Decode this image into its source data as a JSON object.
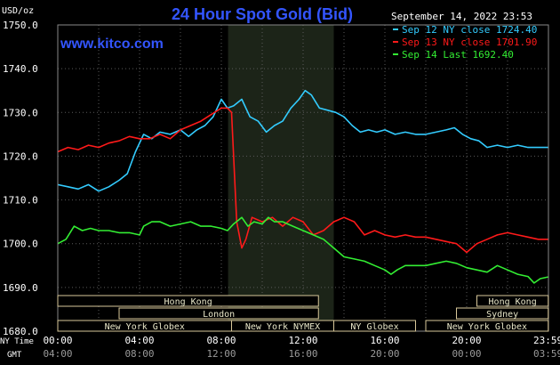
{
  "chart_data": {
    "type": "line",
    "title": "24 Hour Spot Gold (Bid)",
    "source": "www.kitco.com",
    "timestamp": "September 14, 2022 23:53",
    "y_unit": "USD/oz",
    "ylim": [
      1680,
      1750
    ],
    "y_ticks": [
      "1750.0",
      "1740.0",
      "1730.0",
      "1720.0",
      "1710.0",
      "1700.0",
      "1690.0",
      "1680.0"
    ],
    "x_ticks_ny": [
      "00:00",
      "04:00",
      "08:00",
      "12:00",
      "16:00",
      "20:00",
      "23:59"
    ],
    "x_ticks_gmt": [
      "04:00",
      "08:00",
      "12:00",
      "16:00",
      "20:00",
      "00:00",
      "03:59"
    ],
    "x_label_ny": "NY Time",
    "x_label_gmt": "GMT",
    "grid": true,
    "legend_position": "top-right",
    "series": [
      {
        "name": "Sep 12 NY close 1724.40",
        "color": "#33ccff",
        "points": [
          [
            0,
            1713.5
          ],
          [
            0.5,
            1713
          ],
          [
            1,
            1712.5
          ],
          [
            1.5,
            1713.5
          ],
          [
            2,
            1712
          ],
          [
            2.5,
            1713
          ],
          [
            3,
            1714.5
          ],
          [
            3.4,
            1716
          ],
          [
            3.8,
            1721
          ],
          [
            4.2,
            1725
          ],
          [
            4.6,
            1724
          ],
          [
            5,
            1725.5
          ],
          [
            5.5,
            1725
          ],
          [
            6,
            1726
          ],
          [
            6.4,
            1724.5
          ],
          [
            6.8,
            1726
          ],
          [
            7.2,
            1727
          ],
          [
            7.6,
            1729
          ],
          [
            8,
            1733
          ],
          [
            8.3,
            1731
          ],
          [
            8.6,
            1731.5
          ],
          [
            9,
            1733
          ],
          [
            9.4,
            1729
          ],
          [
            9.8,
            1728
          ],
          [
            10.2,
            1725.5
          ],
          [
            10.6,
            1727
          ],
          [
            11,
            1728
          ],
          [
            11.4,
            1731
          ],
          [
            11.8,
            1733
          ],
          [
            12.1,
            1735
          ],
          [
            12.4,
            1734
          ],
          [
            12.8,
            1731
          ],
          [
            13.2,
            1730.5
          ],
          [
            13.6,
            1730
          ],
          [
            14,
            1729
          ],
          [
            14.4,
            1727
          ],
          [
            14.8,
            1725.5
          ],
          [
            15.2,
            1726
          ],
          [
            15.6,
            1725.5
          ],
          [
            16,
            1726
          ],
          [
            16.5,
            1725
          ],
          [
            17,
            1725.5
          ],
          [
            17.5,
            1725
          ],
          [
            18,
            1725
          ],
          [
            18.5,
            1725.5
          ],
          [
            19,
            1726
          ],
          [
            19.4,
            1726.5
          ],
          [
            19.8,
            1725
          ],
          [
            20.2,
            1724
          ],
          [
            20.6,
            1723.5
          ],
          [
            21,
            1722
          ],
          [
            21.5,
            1722.5
          ],
          [
            22,
            1722
          ],
          [
            22.5,
            1722.5
          ],
          [
            23,
            1722
          ],
          [
            23.5,
            1722
          ],
          [
            23.98,
            1722
          ]
        ]
      },
      {
        "name": "Sep 13 NY close 1701.90",
        "color": "#ff1a1a",
        "points": [
          [
            0,
            1721
          ],
          [
            0.5,
            1722
          ],
          [
            1,
            1721.5
          ],
          [
            1.5,
            1722.5
          ],
          [
            2,
            1722
          ],
          [
            2.5,
            1723
          ],
          [
            3,
            1723.5
          ],
          [
            3.5,
            1724.5
          ],
          [
            4,
            1724
          ],
          [
            4.5,
            1724
          ],
          [
            5,
            1725
          ],
          [
            5.5,
            1724
          ],
          [
            6,
            1726
          ],
          [
            6.5,
            1727
          ],
          [
            7,
            1728
          ],
          [
            7.5,
            1729.5
          ],
          [
            8,
            1731
          ],
          [
            8.3,
            1731
          ],
          [
            8.5,
            1730
          ],
          [
            8.6,
            1720
          ],
          [
            8.75,
            1705
          ],
          [
            9,
            1699
          ],
          [
            9.2,
            1701
          ],
          [
            9.5,
            1706
          ],
          [
            10,
            1705
          ],
          [
            10.5,
            1706
          ],
          [
            11,
            1704
          ],
          [
            11.5,
            1706
          ],
          [
            12,
            1705
          ],
          [
            12.5,
            1702
          ],
          [
            13,
            1703
          ],
          [
            13.5,
            1705
          ],
          [
            14,
            1706
          ],
          [
            14.5,
            1705
          ],
          [
            15,
            1702
          ],
          [
            15.5,
            1703
          ],
          [
            16,
            1702
          ],
          [
            16.5,
            1701.5
          ],
          [
            17,
            1702
          ],
          [
            17.5,
            1701.5
          ],
          [
            18,
            1701.5
          ],
          [
            18.5,
            1701
          ],
          [
            19,
            1700.5
          ],
          [
            19.5,
            1700
          ],
          [
            20,
            1698
          ],
          [
            20.5,
            1700
          ],
          [
            21,
            1701
          ],
          [
            21.5,
            1702
          ],
          [
            22,
            1702.5
          ],
          [
            22.5,
            1702
          ],
          [
            23,
            1701.5
          ],
          [
            23.5,
            1701
          ],
          [
            23.98,
            1701
          ]
        ]
      },
      {
        "name": "Sep 14 Last 1692.40",
        "color": "#33ee33",
        "points": [
          [
            0,
            1700
          ],
          [
            0.4,
            1701
          ],
          [
            0.8,
            1704
          ],
          [
            1.2,
            1703
          ],
          [
            1.6,
            1703.5
          ],
          [
            2,
            1703
          ],
          [
            2.5,
            1703
          ],
          [
            3,
            1702.5
          ],
          [
            3.5,
            1702.5
          ],
          [
            4,
            1702
          ],
          [
            4.2,
            1704
          ],
          [
            4.6,
            1705
          ],
          [
            5,
            1705
          ],
          [
            5.5,
            1704
          ],
          [
            6,
            1704.5
          ],
          [
            6.5,
            1705
          ],
          [
            7,
            1704
          ],
          [
            7.5,
            1704
          ],
          [
            8,
            1703.5
          ],
          [
            8.3,
            1703
          ],
          [
            8.6,
            1704.5
          ],
          [
            9,
            1706
          ],
          [
            9.3,
            1704
          ],
          [
            9.6,
            1705
          ],
          [
            10,
            1704.5
          ],
          [
            10.3,
            1706
          ],
          [
            10.6,
            1705
          ],
          [
            11,
            1705
          ],
          [
            11.5,
            1704
          ],
          [
            12,
            1703
          ],
          [
            12.5,
            1702
          ],
          [
            13,
            1701
          ],
          [
            13.5,
            1699
          ],
          [
            14,
            1697
          ],
          [
            14.5,
            1696.5
          ],
          [
            15,
            1696
          ],
          [
            15.5,
            1695
          ],
          [
            16,
            1694
          ],
          [
            16.3,
            1693
          ],
          [
            16.6,
            1694
          ],
          [
            17,
            1695
          ],
          [
            17.5,
            1695
          ],
          [
            18,
            1695
          ],
          [
            18.5,
            1695.5
          ],
          [
            19,
            1696
          ],
          [
            19.5,
            1695.5
          ],
          [
            20,
            1694.5
          ],
          [
            20.5,
            1694
          ],
          [
            21,
            1693.5
          ],
          [
            21.5,
            1695
          ],
          [
            22,
            1694
          ],
          [
            22.5,
            1693
          ],
          [
            23,
            1692.5
          ],
          [
            23.3,
            1691
          ],
          [
            23.6,
            1692
          ],
          [
            23.98,
            1692.4
          ]
        ]
      }
    ],
    "session_bars": [
      {
        "label": "Hong Kong",
        "row": 0,
        "start": 0,
        "end": 12.75
      },
      {
        "label": "London",
        "row": 1,
        "start": 3,
        "end": 12.75
      },
      {
        "label": "New York Globex",
        "row": 2,
        "start": 0,
        "end": 8.5
      },
      {
        "label": "New York NYMEX",
        "row": 2,
        "start": 8.5,
        "end": 13.5
      },
      {
        "label": "NY Globex",
        "row": 2,
        "start": 13.5,
        "end": 17.5
      },
      {
        "label": "Hong Kong",
        "row": 0,
        "start": 20.5,
        "end": 23.99
      },
      {
        "label": "Sydney",
        "row": 1,
        "start": 19.5,
        "end": 23.99
      },
      {
        "label": "New York Globex",
        "row": 2,
        "start": 18,
        "end": 23.99
      }
    ],
    "highlight_range": [
      8.33,
      13.5
    ]
  }
}
